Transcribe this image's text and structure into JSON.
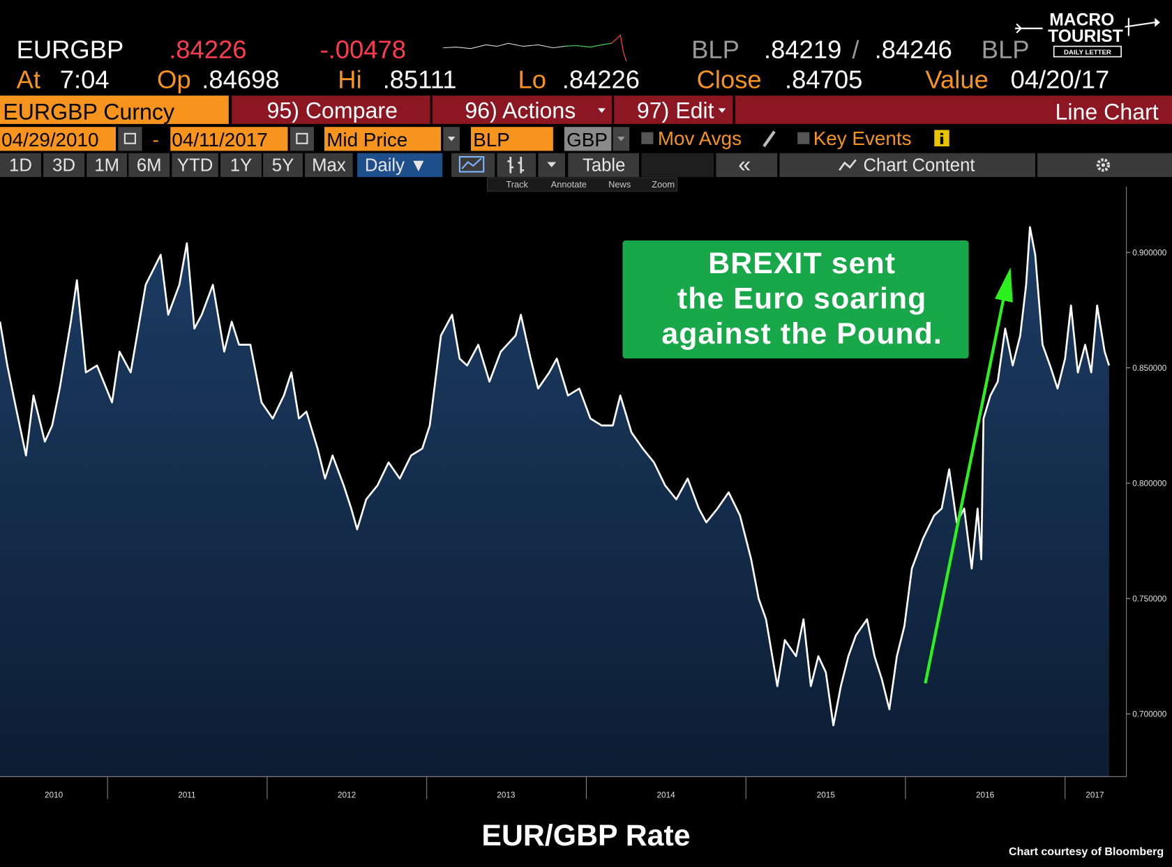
{
  "header": {
    "ticker": "EURGBP",
    "last": ".84226",
    "change": "-.00478",
    "bid_source": "BLP",
    "bid": ".84219",
    "separator": "/",
    "ask": ".84246",
    "ask_source": "BLP",
    "at_label": "At",
    "at": "7:04",
    "open_label": "Op",
    "open": ".84698",
    "high_label": "Hi",
    "high": ".85111",
    "low_label": "Lo",
    "low": ".84226",
    "close_label": "Close",
    "close": ".84705",
    "value_label": "Value",
    "value_date": "04/20/17"
  },
  "logo": {
    "line1": "MACRO",
    "line2": "TOURIST",
    "tagline": "DAILY LETTER"
  },
  "toolbar": {
    "security": "EURGBP Curncy",
    "compare": "95) Compare",
    "actions": "96) Actions",
    "edit": "97) Edit",
    "chart_type": "Line Chart",
    "start_date": "04/29/2010",
    "date_dash": "-",
    "end_date": "04/11/2017",
    "price_field": "Mid Price",
    "source": "BLP",
    "currency": "GBP",
    "mov_avgs": "Mov Avgs",
    "key_events": "Key Events",
    "periods": [
      "1D",
      "3D",
      "1M",
      "6M",
      "YTD",
      "1Y",
      "5Y",
      "Max"
    ],
    "frequency": "Daily ▼",
    "table": "Table",
    "collapse": "«",
    "chart_content": "Chart Content",
    "tools": [
      "Track",
      "Annotate",
      "News",
      "Zoom"
    ]
  },
  "chart_data": {
    "type": "line",
    "color": "#ffffff",
    "area_color": "#17345a",
    "x": [
      2010.326,
      2010.372,
      2010.419,
      2010.489,
      2010.536,
      2010.607,
      2010.653,
      2010.7,
      2010.77,
      2010.808,
      2010.864,
      2010.934,
      2011.028,
      2011.075,
      2011.145,
      2011.192,
      2011.239,
      2011.333,
      2011.38,
      2011.45,
      2011.497,
      2011.544,
      2011.59,
      2011.66,
      2011.731,
      2011.778,
      2011.824,
      2011.895,
      2011.965,
      2012.035,
      2012.105,
      2012.152,
      2012.199,
      2012.246,
      2012.316,
      2012.363,
      2012.41,
      2012.48,
      2012.527,
      2012.564,
      2012.621,
      2012.691,
      2012.761,
      2012.831,
      2012.902,
      2012.972,
      2013.019,
      2013.089,
      2013.159,
      2013.206,
      2013.253,
      2013.323,
      2013.393,
      2013.464,
      2013.557,
      2013.59,
      2013.651,
      2013.698,
      2013.768,
      2013.815,
      2013.885,
      2013.956,
      2014.026,
      2014.096,
      2014.166,
      2014.213,
      2014.283,
      2014.354,
      2014.424,
      2014.494,
      2014.564,
      2014.635,
      2014.705,
      2014.752,
      2014.822,
      2014.892,
      2014.963,
      2015.033,
      2015.08,
      2015.126,
      2015.197,
      2015.244,
      2015.314,
      2015.361,
      2015.407,
      2015.454,
      2015.501,
      2015.548,
      2015.595,
      2015.642,
      2015.689,
      2015.759,
      2015.806,
      2015.852,
      2015.899,
      2015.946,
      2015.993,
      2016.04,
      2016.11,
      2016.18,
      2016.227,
      2016.274,
      2016.321,
      2016.368,
      2016.415,
      2016.452,
      2016.475,
      2016.489,
      2016.532,
      2016.578,
      2016.625,
      2016.672,
      2016.719,
      2016.756,
      2016.78,
      2016.813,
      2016.859,
      2016.906,
      2016.953,
      2017.0,
      2017.037,
      2017.08,
      2017.126,
      2017.164,
      2017.201,
      2017.248,
      2017.276
    ],
    "values": [
      0.87,
      0.851,
      0.835,
      0.812,
      0.838,
      0.818,
      0.825,
      0.841,
      0.87,
      0.888,
      0.848,
      0.851,
      0.835,
      0.857,
      0.848,
      0.867,
      0.886,
      0.899,
      0.873,
      0.886,
      0.904,
      0.867,
      0.873,
      0.886,
      0.857,
      0.87,
      0.86,
      0.86,
      0.835,
      0.828,
      0.838,
      0.848,
      0.828,
      0.831,
      0.815,
      0.802,
      0.812,
      0.799,
      0.789,
      0.78,
      0.793,
      0.799,
      0.809,
      0.802,
      0.812,
      0.815,
      0.825,
      0.864,
      0.873,
      0.854,
      0.851,
      0.86,
      0.844,
      0.857,
      0.864,
      0.873,
      0.854,
      0.841,
      0.848,
      0.854,
      0.838,
      0.841,
      0.828,
      0.825,
      0.825,
      0.838,
      0.822,
      0.815,
      0.809,
      0.799,
      0.793,
      0.802,
      0.789,
      0.783,
      0.789,
      0.796,
      0.786,
      0.767,
      0.75,
      0.741,
      0.712,
      0.732,
      0.725,
      0.741,
      0.712,
      0.725,
      0.718,
      0.695,
      0.712,
      0.725,
      0.734,
      0.741,
      0.725,
      0.715,
      0.702,
      0.725,
      0.738,
      0.763,
      0.776,
      0.786,
      0.789,
      0.806,
      0.783,
      0.789,
      0.763,
      0.789,
      0.767,
      0.828,
      0.838,
      0.844,
      0.867,
      0.851,
      0.864,
      0.886,
      0.911,
      0.899,
      0.86,
      0.851,
      0.841,
      0.854,
      0.877,
      0.848,
      0.86,
      0.848,
      0.877,
      0.857,
      0.851
    ],
    "xlim": [
      2010.326,
      2017.375
    ],
    "xticks": [
      {
        "value": 2010.663,
        "label": "2010"
      },
      {
        "value": 2011.497,
        "label": "2011"
      },
      {
        "value": 2012.499,
        "label": "2012"
      },
      {
        "value": 2013.497,
        "label": "2013"
      },
      {
        "value": 2014.499,
        "label": "2014"
      },
      {
        "value": 2015.501,
        "label": "2015"
      },
      {
        "value": 2016.499,
        "label": "2016"
      },
      {
        "value": 2017.187,
        "label": "2017"
      }
    ],
    "ylim": [
      0.6728,
      0.9285
    ],
    "yticks": [
      {
        "value": 0.7,
        "label": "0.700000"
      },
      {
        "value": 0.75,
        "label": "0.750000"
      },
      {
        "value": 0.8,
        "label": "0.800000"
      },
      {
        "value": 0.85,
        "label": "0.850000"
      },
      {
        "value": 0.9,
        "label": "0.900000"
      }
    ],
    "grid": false,
    "annotation": [
      "BREXIT sent",
      "the Euro soaring",
      "against the Pound."
    ]
  },
  "footer": {
    "title": "EUR/GBP Rate",
    "credit": "Chart courtesy of Bloomberg"
  }
}
